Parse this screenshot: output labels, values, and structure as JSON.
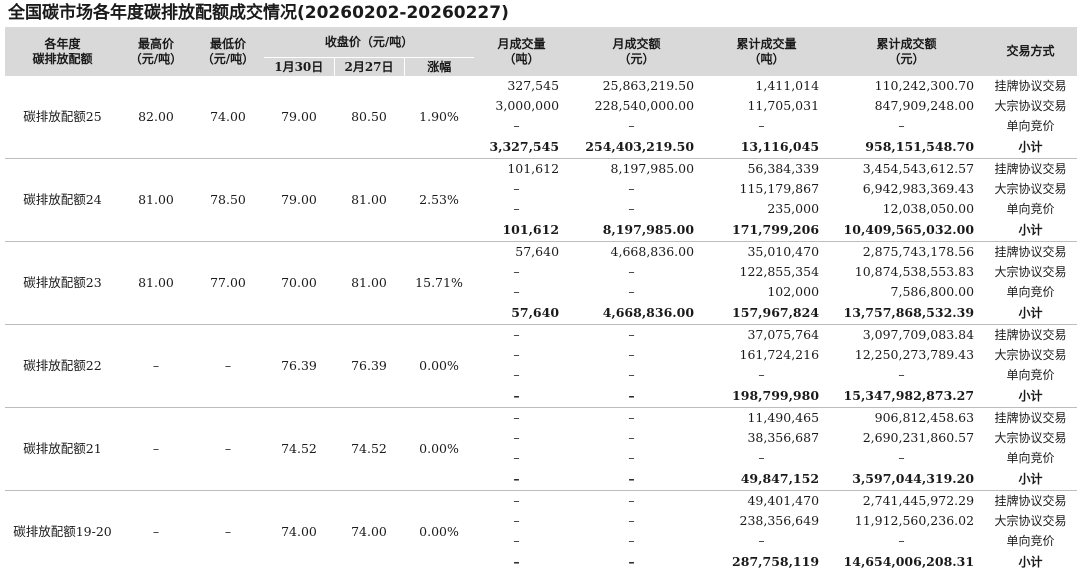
{
  "title": "全国碳市场各年度碳排放配额成交情况(20260202-20260227)",
  "header": {
    "col_year": [
      "各年度",
      "碳排放配额"
    ],
    "col_high": [
      "最高价",
      "（元/吨）"
    ],
    "col_low": [
      "最低价",
      "（元/吨）"
    ],
    "col_close": "收盘价（元/吨）",
    "col_close_d1": "1月30日",
    "col_close_d2": "2月27日",
    "col_change": "涨幅",
    "col_month_vol": [
      "月成交量",
      "（吨）"
    ],
    "col_month_amt": [
      "月成交额",
      "（元）"
    ],
    "col_cum_vol": [
      "累计成交量",
      "（吨）"
    ],
    "col_cum_amt": [
      "累计成交额",
      "（元）"
    ],
    "col_mode": "交易方式"
  },
  "groups": [
    {
      "label": "碳排放配额25",
      "high": "82.00",
      "low": "74.00",
      "close1": "79.00",
      "close2": "80.50",
      "change": "1.90%",
      "rows": [
        {
          "mv": "327,545",
          "ma": "25,863,219.50",
          "cv": "1,411,014",
          "ca": "110,242,300.70",
          "mode": "挂牌协议交易"
        },
        {
          "mv": "3,000,000",
          "ma": "228,540,000.00",
          "cv": "11,705,031",
          "ca": "847,909,248.00",
          "mode": "大宗协议交易"
        },
        {
          "mv": "–",
          "ma": "–",
          "cv": "–",
          "ca": "–",
          "mode": "单向竞价"
        },
        {
          "mv": "3,327,545",
          "ma": "254,403,219.50",
          "cv": "13,116,045",
          "ca": "958,151,548.70",
          "mode": "小计"
        }
      ]
    },
    {
      "label": "碳排放配额24",
      "high": "81.00",
      "low": "78.50",
      "close1": "79.00",
      "close2": "81.00",
      "change": "2.53%",
      "rows": [
        {
          "mv": "101,612",
          "ma": "8,197,985.00",
          "cv": "56,384,339",
          "ca": "3,454,543,612.57",
          "mode": "挂牌协议交易"
        },
        {
          "mv": "–",
          "ma": "–",
          "cv": "115,179,867",
          "ca": "6,942,983,369.43",
          "mode": "大宗协议交易"
        },
        {
          "mv": "–",
          "ma": "–",
          "cv": "235,000",
          "ca": "12,038,050.00",
          "mode": "单向竞价"
        },
        {
          "mv": "101,612",
          "ma": "8,197,985.00",
          "cv": "171,799,206",
          "ca": "10,409,565,032.00",
          "mode": "小计"
        }
      ]
    },
    {
      "label": "碳排放配额23",
      "high": "81.00",
      "low": "77.00",
      "close1": "70.00",
      "close2": "81.00",
      "change": "15.71%",
      "rows": [
        {
          "mv": "57,640",
          "ma": "4,668,836.00",
          "cv": "35,010,470",
          "ca": "2,875,743,178.56",
          "mode": "挂牌协议交易"
        },
        {
          "mv": "–",
          "ma": "–",
          "cv": "122,855,354",
          "ca": "10,874,538,553.83",
          "mode": "大宗协议交易"
        },
        {
          "mv": "–",
          "ma": "–",
          "cv": "102,000",
          "ca": "7,586,800.00",
          "mode": "单向竞价"
        },
        {
          "mv": "57,640",
          "ma": "4,668,836.00",
          "cv": "157,967,824",
          "ca": "13,757,868,532.39",
          "mode": "小计"
        }
      ]
    },
    {
      "label": "碳排放配额22",
      "high": "–",
      "low": "–",
      "close1": "76.39",
      "close2": "76.39",
      "change": "0.00%",
      "rows": [
        {
          "mv": "–",
          "ma": "–",
          "cv": "37,075,764",
          "ca": "3,097,709,083.84",
          "mode": "挂牌协议交易"
        },
        {
          "mv": "–",
          "ma": "–",
          "cv": "161,724,216",
          "ca": "12,250,273,789.43",
          "mode": "大宗协议交易"
        },
        {
          "mv": "–",
          "ma": "–",
          "cv": "–",
          "ca": "–",
          "mode": "单向竞价"
        },
        {
          "mv": "–",
          "ma": "–",
          "cv": "198,799,980",
          "ca": "15,347,982,873.27",
          "mode": "小计"
        }
      ]
    },
    {
      "label": "碳排放配额21",
      "high": "–",
      "low": "–",
      "close1": "74.52",
      "close2": "74.52",
      "change": "0.00%",
      "rows": [
        {
          "mv": "–",
          "ma": "–",
          "cv": "11,490,465",
          "ca": "906,812,458.63",
          "mode": "挂牌协议交易"
        },
        {
          "mv": "–",
          "ma": "–",
          "cv": "38,356,687",
          "ca": "2,690,231,860.57",
          "mode": "大宗协议交易"
        },
        {
          "mv": "–",
          "ma": "–",
          "cv": "–",
          "ca": "–",
          "mode": "单向竞价"
        },
        {
          "mv": "–",
          "ma": "–",
          "cv": "49,847,152",
          "ca": "3,597,044,319.20",
          "mode": "小计"
        }
      ]
    },
    {
      "label": "碳排放配额19-20",
      "high": "–",
      "low": "–",
      "close1": "74.00",
      "close2": "74.00",
      "change": "0.00%",
      "rows": [
        {
          "mv": "–",
          "ma": "–",
          "cv": "49,401,470",
          "ca": "2,741,445,972.29",
          "mode": "挂牌协议交易"
        },
        {
          "mv": "–",
          "ma": "–",
          "cv": "238,356,649",
          "ca": "11,912,560,236.02",
          "mode": "大宗协议交易"
        },
        {
          "mv": "–",
          "ma": "–",
          "cv": "–",
          "ca": "–",
          "mode": "单向竞价"
        },
        {
          "mv": "–",
          "ma": "–",
          "cv": "287,758,119",
          "ca": "14,654,006,208.31",
          "mode": "小计"
        }
      ]
    }
  ]
}
